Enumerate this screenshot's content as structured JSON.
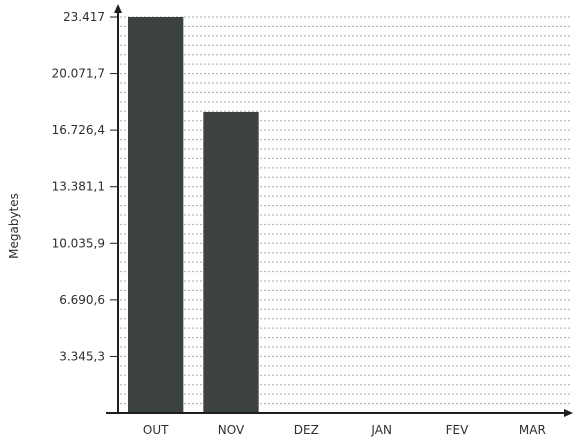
{
  "chart_data": {
    "type": "bar",
    "categories": [
      "OUT",
      "NOV",
      "DEZ",
      "JAN",
      "FEV",
      "MAR"
    ],
    "values": [
      23417,
      17800,
      null,
      null,
      null,
      null
    ],
    "ylabel": "Megabytes",
    "ylim": [
      0,
      23417
    ],
    "yticks": [
      3345.3,
      6690.6,
      10035.9,
      13381.1,
      16726.4,
      20071.7,
      23417
    ],
    "ytick_labels": [
      "3.345,3",
      "6.690,6",
      "10.035,9",
      "13.381,1",
      "16.726,4",
      "20.071,7",
      "23.417"
    ],
    "grid": true,
    "legend": false
  },
  "colors": {
    "bar": "#3c423d",
    "axis": "#1f1f1f",
    "grid": "#a9a9a9",
    "text": "#2f2f2f"
  }
}
